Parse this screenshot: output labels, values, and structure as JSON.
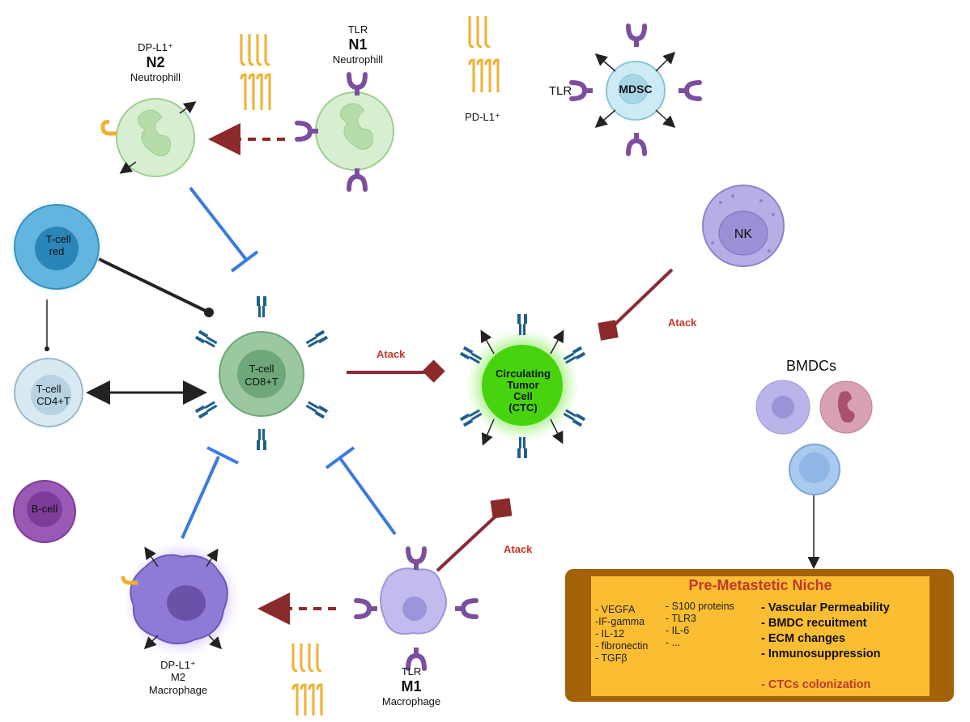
{
  "cells": {
    "n2": {
      "sup": "DP-L1⁺",
      "name": "N2",
      "type": "Neutrophill"
    },
    "n1": {
      "sup": "TLR",
      "name": "N1",
      "type": "Neutrophill"
    },
    "pdl1": "PD-L1⁺",
    "mdsc": {
      "tlr": "TLR",
      "name": "MDSC"
    },
    "nk": "NK",
    "tcell_red": {
      "line1": "T-cell",
      "line2": "red"
    },
    "tcell_cd4": {
      "line1": "T-cell",
      "line2": "CD4+T"
    },
    "tcell_cd8": {
      "line1": "T-cell",
      "line2": "CD8+T"
    },
    "bcell": "B-cell",
    "ctc": {
      "line1": "Circulating",
      "line2": "Tumor",
      "line3": "Cell",
      "line4": "(CTC)"
    },
    "bmdcs": "BMDCs",
    "m2": {
      "sup": "DP-L1⁺",
      "name": "M2",
      "type": "Macrophage"
    },
    "m1": {
      "sup": "TLR",
      "name": "M1",
      "type": "Macrophage"
    }
  },
  "attack": {
    "label": "Atack"
  },
  "niche": {
    "title": "Pre-Metastetic Niche",
    "factors_left": [
      "- VEGFA",
      "-IF-gamma",
      "- IL-12",
      "- fibronectin",
      "- TGFβ"
    ],
    "factors_right": [
      "- S100 proteins",
      "- TLR3",
      "- IL-6",
      "-  ..."
    ],
    "effects": [
      "- Vascular Permeability",
      "- BMDC recuitment",
      "- ECM changes",
      "- Inmunosuppression"
    ],
    "colonization": "- CTCs colonization"
  }
}
